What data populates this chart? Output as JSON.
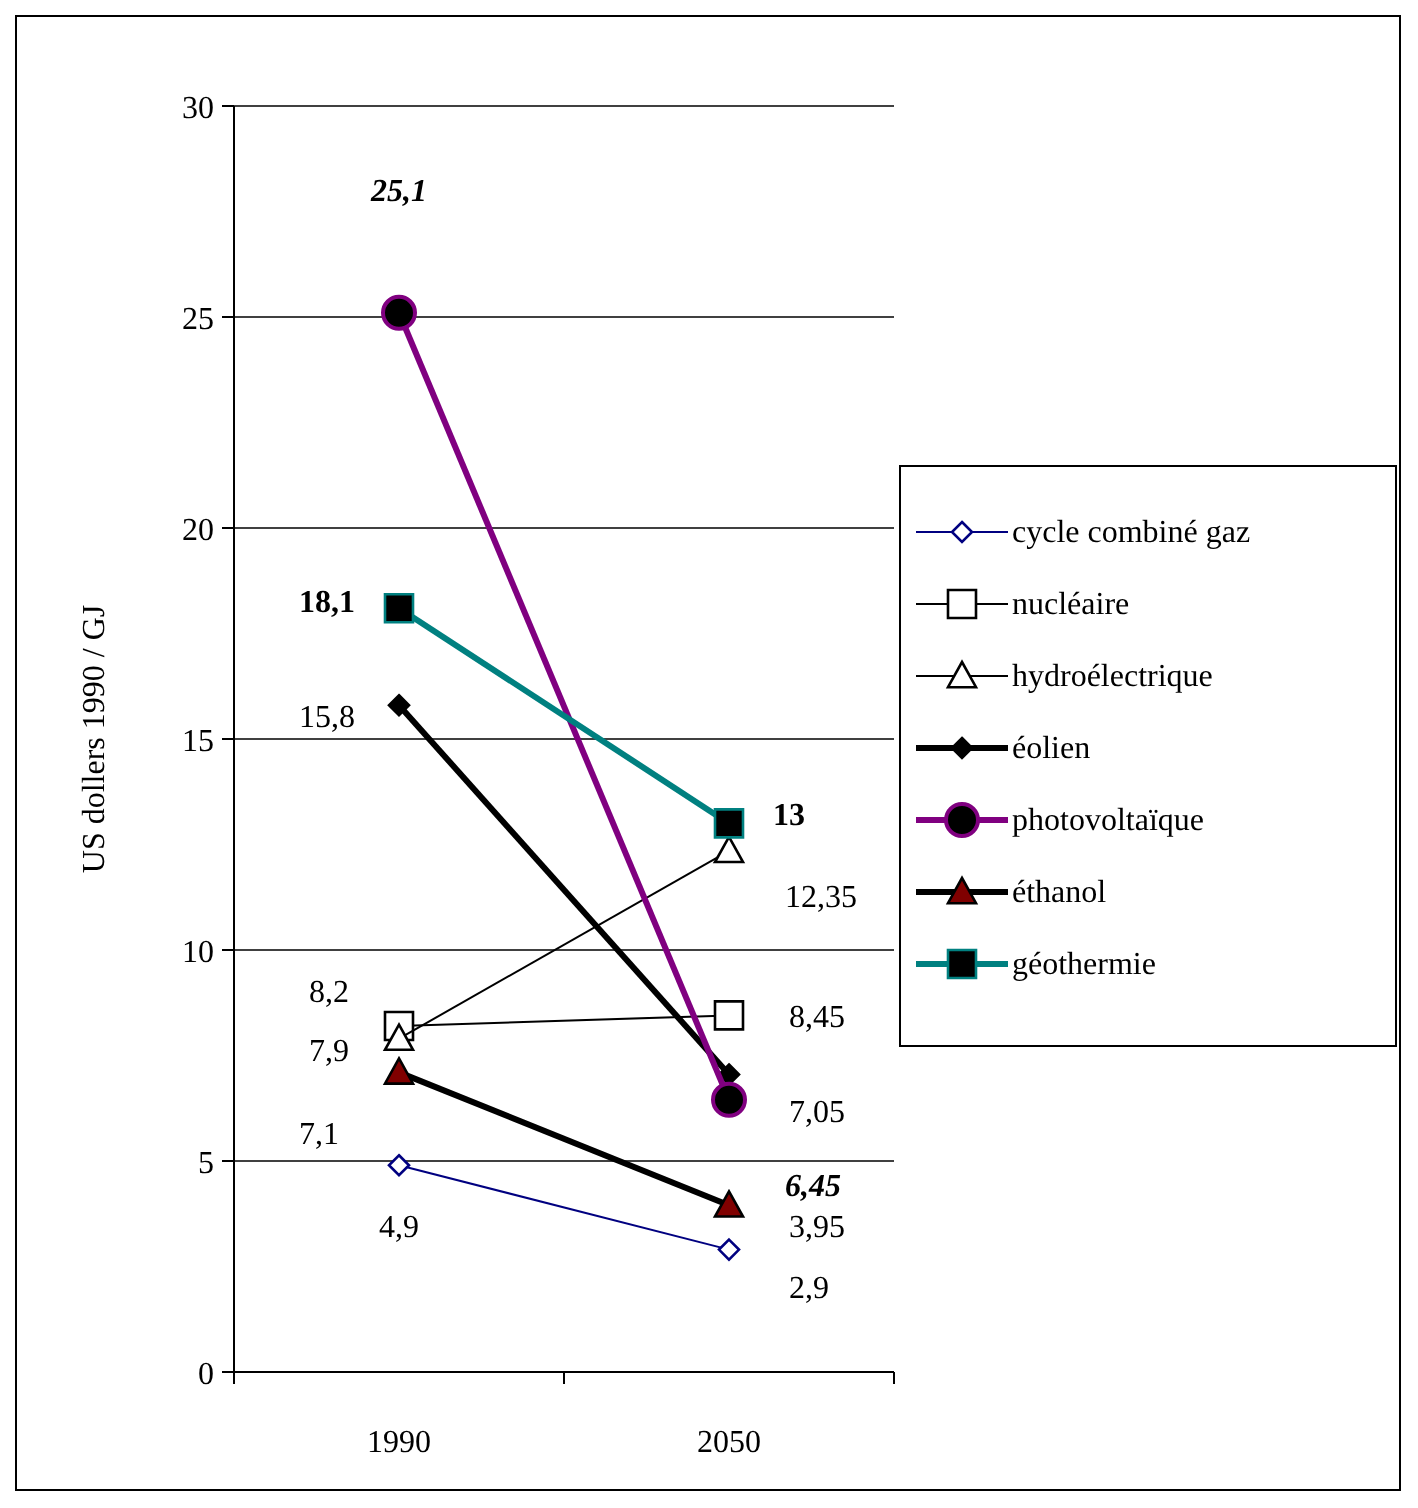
{
  "chart_data": {
    "type": "line",
    "ylabel": "US dollers 1990 / GJ",
    "categories": [
      "1990",
      "2050"
    ],
    "ylim": [
      0,
      30
    ],
    "yticks": [
      0,
      5,
      10,
      15,
      20,
      25,
      30
    ],
    "grid": "y",
    "legend": "right",
    "series": [
      {
        "name": "cycle combiné gaz",
        "color": "#000080",
        "marker": "diamond",
        "values": [
          4.9,
          2.9
        ],
        "value_labels": [
          "4,9",
          "2,9"
        ]
      },
      {
        "name": "nucléaire",
        "color": "#000000",
        "marker": "square",
        "values": [
          8.2,
          8.45
        ],
        "value_labels": [
          "8,2",
          "8,45"
        ]
      },
      {
        "name": "hydroélectrique",
        "color": "#000000",
        "marker": "triangle",
        "values": [
          7.9,
          12.35
        ],
        "value_labels": [
          "7,9",
          "12,35"
        ]
      },
      {
        "name": "éolien",
        "color": "#000000",
        "marker": "diamond",
        "values": [
          15.8,
          7.05
        ],
        "value_labels": [
          "15,8",
          "7,05"
        ]
      },
      {
        "name": "photovoltaïque",
        "color": "#800080",
        "marker": "circle",
        "values": [
          25.1,
          6.45
        ],
        "value_labels": [
          "25,1",
          "6,45"
        ]
      },
      {
        "name": "éthanol",
        "color": "#000000",
        "marker": "triangle",
        "values": [
          7.1,
          3.95
        ],
        "value_labels": [
          "7,1",
          "3,95"
        ]
      },
      {
        "name": "géothermie",
        "color": "#008080",
        "marker": "square",
        "values": [
          18.1,
          13
        ],
        "value_labels": [
          "18,1",
          "13"
        ]
      }
    ]
  }
}
